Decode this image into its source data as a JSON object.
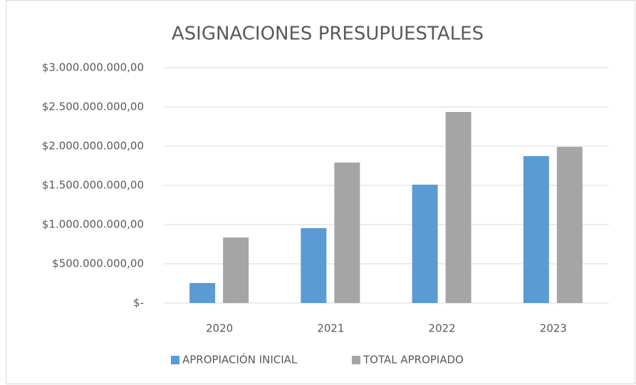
{
  "chart_data": {
    "type": "bar",
    "title": "ASIGNACIONES PRESUPUESTALES",
    "categories": [
      "2020",
      "2021",
      "2022",
      "2023"
    ],
    "series": [
      {
        "name": "APROPIACIÓN INICIAL",
        "color": "#5b9bd5",
        "values": [
          255000000,
          955000000,
          1509000000,
          1873000000
        ]
      },
      {
        "name": "TOTAL APROPIADO",
        "color": "#a5a5a5",
        "values": [
          836000000,
          1791000000,
          2436000000,
          1991000000
        ]
      }
    ],
    "ylim": [
      0,
      3000000000
    ],
    "yticks": [
      {
        "value": 0,
        "label": "$-"
      },
      {
        "value": 500000000,
        "label": "$500.000.000,00"
      },
      {
        "value": 1000000000,
        "label": "$1.000.000.000,00"
      },
      {
        "value": 1500000000,
        "label": "$1.500.000.000,00"
      },
      {
        "value": 2000000000,
        "label": "$2.000.000.000,00"
      },
      {
        "value": 2500000000,
        "label": "$2.500.000.000,00"
      },
      {
        "value": 3000000000,
        "label": "$3.000.000.000,00"
      }
    ],
    "grid": true,
    "legend": "bottom"
  }
}
